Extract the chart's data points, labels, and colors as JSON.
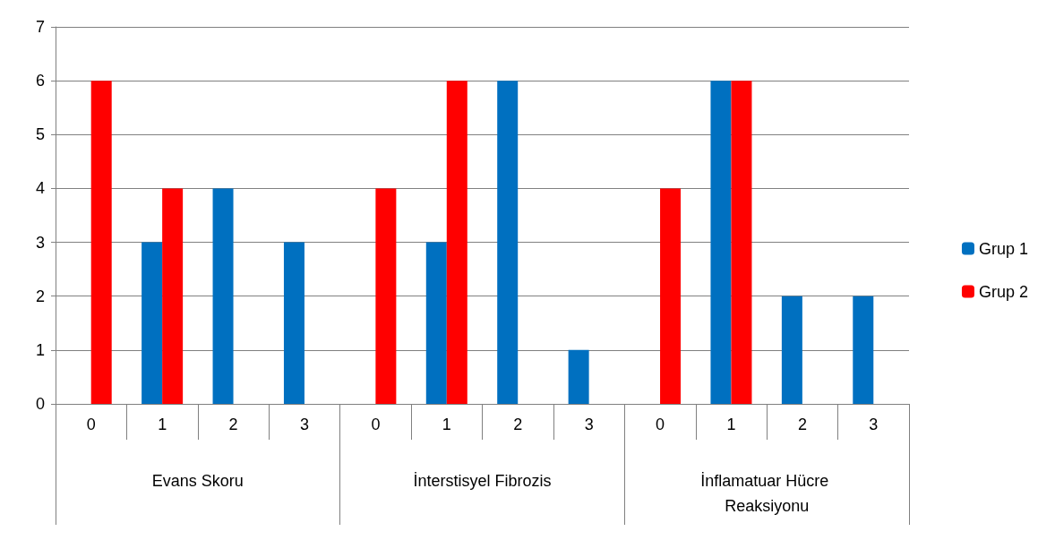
{
  "chart_data": {
    "type": "bar",
    "categories": [
      "0",
      "1",
      "2",
      "3",
      "0",
      "1",
      "2",
      "3",
      "0",
      "1",
      "2",
      "3"
    ],
    "annotations": [
      "Evans Skoru",
      "İnterstisyel Fibrozis",
      "İnflamatuar Hücre Reaksiyonu"
    ],
    "series": [
      {
        "name": "Grup 1",
        "color": "#0070c0",
        "values": [
          0,
          3,
          4,
          3,
          0,
          3,
          6,
          1,
          0,
          6,
          2,
          2
        ]
      },
      {
        "name": "Grup 2",
        "color": "#ff0000",
        "values": [
          6,
          4,
          0,
          0,
          4,
          6,
          0,
          0,
          4,
          6,
          0,
          0
        ]
      }
    ],
    "ylim": [
      0,
      7
    ],
    "yticks": [
      0,
      1,
      2,
      3,
      4,
      5,
      6,
      7
    ],
    "grid": "y",
    "legend": "right"
  }
}
